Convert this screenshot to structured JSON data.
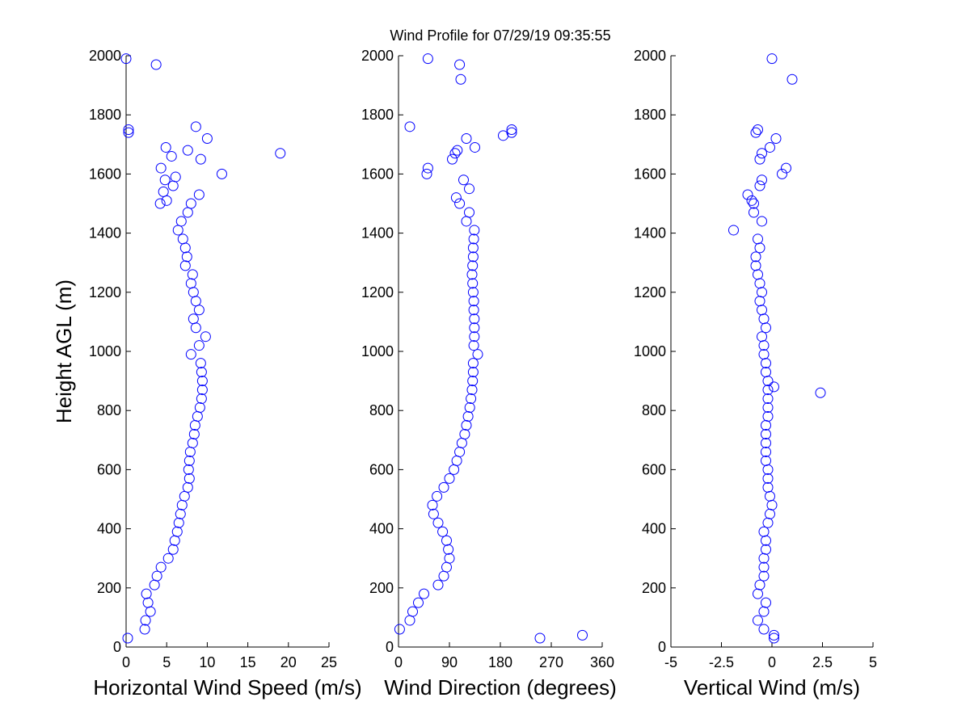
{
  "chart_data": [
    {
      "type": "scatter",
      "ylabel": "Height AGL (m)",
      "xlabel": "Horizontal Wind Speed (m/s)",
      "color": "#0000ff",
      "xlim": [
        0,
        25
      ],
      "xticks": [
        0,
        5,
        10,
        15,
        20,
        25
      ],
      "ylim": [
        0,
        2000
      ],
      "yticks": [
        0,
        200,
        400,
        600,
        800,
        1000,
        1200,
        1400,
        1600,
        1800,
        2000
      ],
      "x": [
        0.2,
        2.3,
        2.4,
        3.0,
        2.7,
        2.5,
        3.5,
        3.8,
        4.3,
        5.2,
        5.8,
        6.0,
        6.3,
        6.5,
        6.7,
        6.9,
        7.2,
        7.6,
        7.8,
        7.7,
        7.8,
        7.9,
        8.2,
        8.4,
        8.5,
        8.8,
        9.1,
        9.3,
        9.4,
        9.4,
        9.3,
        9.2,
        8.0,
        9.0,
        9.8,
        8.6,
        8.3,
        9.0,
        8.6,
        8.3,
        8.0,
        8.2,
        7.3,
        7.5,
        7.3,
        7.0,
        6.4,
        6.8,
        7.6,
        8.0,
        5.0,
        4.2,
        4.6,
        5.8,
        4.8,
        6.1,
        11.8,
        4.3,
        9.2,
        5.6,
        19.0,
        7.6,
        4.9,
        10.0,
        0.3,
        0.3,
        8.6,
        9.0,
        3.7,
        0.0
      ],
      "y": [
        30,
        60,
        90,
        120,
        150,
        180,
        210,
        240,
        270,
        300,
        330,
        360,
        390,
        420,
        450,
        480,
        510,
        540,
        570,
        600,
        630,
        660,
        690,
        720,
        750,
        780,
        810,
        840,
        870,
        900,
        930,
        960,
        990,
        1020,
        1050,
        1080,
        1110,
        1140,
        1170,
        1200,
        1230,
        1260,
        1290,
        1320,
        1350,
        1380,
        1410,
        1440,
        1470,
        1500,
        1510,
        1500,
        1540,
        1560,
        1580,
        1590,
        1600,
        1620,
        1650,
        1660,
        1670,
        1680,
        1690,
        1720,
        1740,
        1750,
        1760,
        1530,
        1970,
        1990
      ]
    },
    {
      "type": "scatter",
      "title": "Wind Profile for  07/29/19 09:35:55",
      "xlabel": "Wind Direction (degrees)",
      "color": "#0000ff",
      "xlim": [
        0,
        360
      ],
      "xticks": [
        0,
        90,
        180,
        270,
        360
      ],
      "ylim": [
        0,
        2000
      ],
      "yticks": [
        0,
        200,
        400,
        600,
        800,
        1000,
        1200,
        1400,
        1600,
        1800,
        2000
      ],
      "x": [
        2,
        20,
        25,
        35,
        45,
        70,
        80,
        85,
        90,
        88,
        85,
        78,
        70,
        62,
        60,
        68,
        80,
        90,
        98,
        103,
        108,
        112,
        117,
        120,
        123,
        126,
        128,
        130,
        131,
        132,
        132,
        140,
        133,
        134,
        134,
        134,
        133,
        133,
        132,
        131,
        130,
        131,
        132,
        132,
        133,
        134,
        120,
        125,
        108,
        250,
        325,
        102,
        125,
        115,
        50,
        52,
        95,
        100,
        104,
        135,
        120,
        185,
        200,
        200,
        20,
        110,
        108,
        52
      ],
      "y": [
        60,
        90,
        120,
        150,
        180,
        210,
        240,
        270,
        300,
        330,
        360,
        390,
        420,
        450,
        480,
        510,
        540,
        570,
        600,
        630,
        660,
        690,
        720,
        750,
        780,
        810,
        840,
        870,
        900,
        930,
        960,
        990,
        1020,
        1050,
        1080,
        1110,
        1140,
        1170,
        1200,
        1230,
        1260,
        1290,
        1320,
        1350,
        1380,
        1410,
        1440,
        1470,
        1500,
        30,
        40,
        1520,
        1550,
        1580,
        1600,
        1620,
        1650,
        1670,
        1680,
        1690,
        1720,
        1730,
        1740,
        1750,
        1760,
        1920,
        1970,
        1990
      ]
    },
    {
      "type": "scatter",
      "xlabel": "Vertical Wind (m/s)",
      "color": "#0000ff",
      "xlim": [
        -5,
        5
      ],
      "xticks": [
        -5,
        -2.5,
        0,
        2.5,
        5
      ],
      "ylim": [
        0,
        2000
      ],
      "yticks": [
        0,
        200,
        400,
        600,
        800,
        1000,
        1200,
        1400,
        1600,
        1800,
        2000
      ],
      "x": [
        0.1,
        0.1,
        -0.4,
        -0.7,
        -0.4,
        -0.3,
        -0.7,
        -0.6,
        -0.4,
        -0.4,
        -0.4,
        -0.3,
        -0.3,
        -0.4,
        -0.2,
        -0.1,
        0,
        -0.1,
        -0.2,
        -0.2,
        -0.2,
        -0.3,
        -0.3,
        -0.3,
        -0.3,
        -0.3,
        -0.2,
        -0.2,
        -0.2,
        -0.2,
        0.1,
        2.4,
        -0.2,
        -0.3,
        -0.3,
        -0.4,
        -0.4,
        -0.5,
        -0.3,
        -0.4,
        -0.5,
        -0.6,
        -0.5,
        -0.6,
        -0.7,
        -0.8,
        -0.8,
        -0.6,
        -0.7,
        -1.9,
        -0.5,
        -0.9,
        -0.9,
        -1.2,
        -1.0,
        -0.6,
        -0.5,
        0.5,
        0.7,
        -0.6,
        -0.5,
        -0.1,
        0.2,
        -0.8,
        -0.7,
        1.0,
        0
      ],
      "y": [
        30,
        40,
        60,
        90,
        120,
        150,
        180,
        210,
        240,
        270,
        300,
        330,
        360,
        390,
        420,
        450,
        480,
        510,
        540,
        570,
        600,
        630,
        660,
        690,
        720,
        750,
        780,
        810,
        840,
        870,
        880,
        860,
        900,
        930,
        960,
        990,
        1020,
        1050,
        1080,
        1110,
        1140,
        1170,
        1200,
        1230,
        1260,
        1290,
        1320,
        1350,
        1380,
        1410,
        1440,
        1470,
        1500,
        1530,
        1510,
        1560,
        1580,
        1600,
        1620,
        1650,
        1670,
        1690,
        1720,
        1740,
        1750,
        1920,
        1990
      ]
    }
  ]
}
